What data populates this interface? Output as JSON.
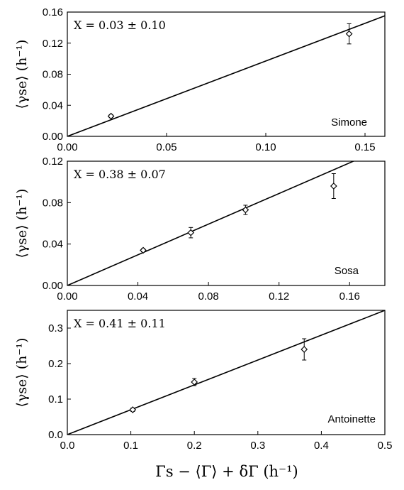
{
  "chart_data": [
    {
      "type": "scatter",
      "panel": "Simone",
      "annotation": "X = 0.03 ± 0.10",
      "ylabel": "⟨γse⟩ (h⁻¹)",
      "xlim": [
        0.0,
        0.16
      ],
      "ylim": [
        0.0,
        0.16
      ],
      "xticks": [
        0.0,
        0.05,
        0.1,
        0.15
      ],
      "xtick_labels": [
        "0.00",
        "0.05",
        "0.10",
        "0.15"
      ],
      "yticks": [
        0.0,
        0.04,
        0.08,
        0.12,
        0.16
      ],
      "ytick_labels": [
        "0.00",
        "0.04",
        "0.08",
        "0.12",
        "0.16"
      ],
      "points": [
        {
          "x": 0.022,
          "y": 0.026,
          "err": 0.002
        },
        {
          "x": 0.142,
          "y": 0.132,
          "err": 0.013
        }
      ],
      "fit_line": {
        "slope": 0.97,
        "intercept": 0.0
      }
    },
    {
      "type": "scatter",
      "panel": "Sosa",
      "annotation": "X = 0.38 ± 0.07",
      "ylabel": "⟨γse⟩ (h⁻¹)",
      "xlim": [
        0.0,
        0.18
      ],
      "ylim": [
        0.0,
        0.12
      ],
      "xticks": [
        0.0,
        0.04,
        0.08,
        0.12,
        0.16
      ],
      "xtick_labels": [
        "0.00",
        "0.04",
        "0.08",
        "0.12",
        "0.16"
      ],
      "yticks": [
        0.0,
        0.04,
        0.08,
        0.12
      ],
      "ytick_labels": [
        "0.00",
        "0.04",
        "0.08",
        "0.12"
      ],
      "points": [
        {
          "x": 0.043,
          "y": 0.034,
          "err": 0.0015
        },
        {
          "x": 0.07,
          "y": 0.051,
          "err": 0.005
        },
        {
          "x": 0.101,
          "y": 0.073,
          "err": 0.0045
        },
        {
          "x": 0.151,
          "y": 0.096,
          "err": 0.012
        }
      ],
      "fit_line": {
        "slope": 0.74,
        "intercept": 0.0
      }
    },
    {
      "type": "scatter",
      "panel": "Antoinette",
      "annotation": "X = 0.41 ± 0.11",
      "ylabel": "⟨γse⟩ (h⁻¹)",
      "xlabel": "Γs − ⟨Γ⟩ + δΓ (h⁻¹)",
      "xlim": [
        0.0,
        0.5
      ],
      "ylim": [
        0.0,
        0.35
      ],
      "xticks": [
        0.0,
        0.1,
        0.2,
        0.3,
        0.4,
        0.5
      ],
      "xtick_labels": [
        "0.0",
        "0.1",
        "0.2",
        "0.3",
        "0.4",
        "0.5"
      ],
      "yticks": [
        0.0,
        0.1,
        0.2,
        0.3
      ],
      "ytick_labels": [
        "0.0",
        "0.1",
        "0.2",
        "0.3"
      ],
      "points": [
        {
          "x": 0.103,
          "y": 0.07,
          "err": 0.005
        },
        {
          "x": 0.2,
          "y": 0.148,
          "err": 0.01
        },
        {
          "x": 0.373,
          "y": 0.24,
          "err": 0.03
        }
      ],
      "fit_line": {
        "slope": 0.7,
        "intercept": 0.0
      }
    }
  ]
}
